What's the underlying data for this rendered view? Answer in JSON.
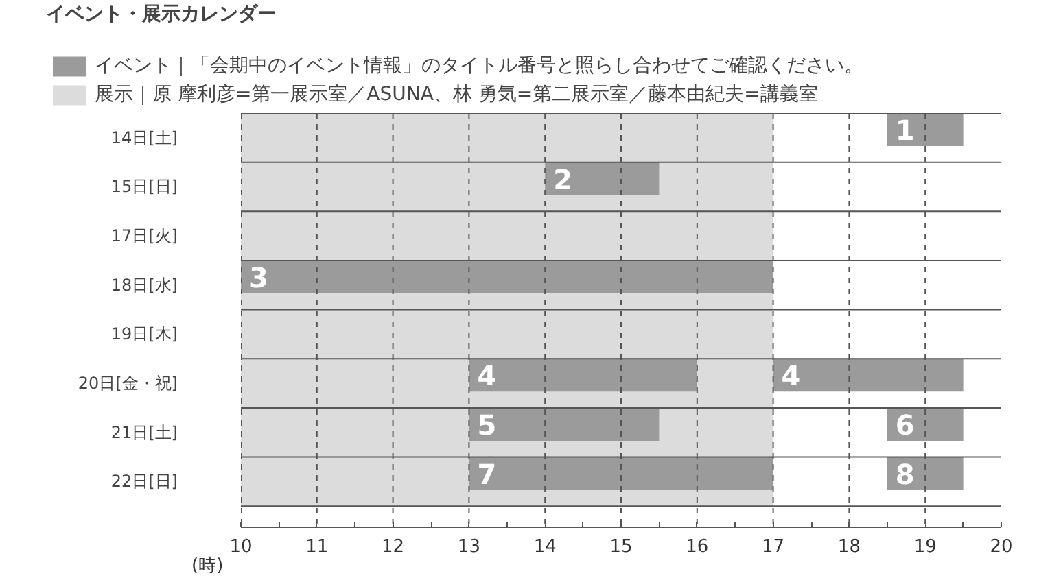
{
  "chart_data": {
    "type": "bar",
    "orientation": "horizontal",
    "title": "イベント・展示カレンダー",
    "xlabel": "(時)",
    "categories": [
      "14日[土]",
      "15日[日]",
      "17日[火]",
      "18日[水]",
      "19日[木]",
      "20日[金・祝]",
      "21日[土]",
      "22日[日]"
    ],
    "xlim": [
      10,
      20
    ],
    "xticks": [
      10,
      {
        "value": 10.5,
        "label": null
      },
      11,
      {
        "value": 11.5,
        "label": null
      },
      12,
      {
        "value": 12.5,
        "label": null
      },
      13,
      {
        "value": 13.5,
        "label": null
      },
      14,
      {
        "value": 14.5,
        "label": null
      },
      15,
      {
        "value": 15.5,
        "label": null
      },
      16,
      {
        "value": 16.5,
        "label": null
      },
      17,
      {
        "value": 17.5,
        "label": null
      },
      18,
      {
        "value": 18.5,
        "label": null
      },
      19,
      {
        "value": 19.5,
        "label": null
      },
      20
    ],
    "grid": "x",
    "legend": "top left",
    "bands": [
      {
        "axis": "x",
        "from": 10,
        "to": 17,
        "label": "展示｜原 摩利彦=第一展示室／ASUNA、林 勇気=第二展示室／藤本由紀夫=講義室",
        "color": "#dcdcdc"
      }
    ],
    "series": [
      {
        "name": "イベント｜「会期中のイベント情報」のタイトル番号と照らし合わせてご確認ください。",
        "color": "#9b9b9b",
        "base": [
          18.5,
          14,
          null,
          10,
          null,
          13,
          13,
          13
        ],
        "values": [
          1,
          1.5,
          null,
          7,
          null,
          3,
          2.5,
          4
        ]
      },
      {
        "color": "#9b9b9b",
        "base": [
          null,
          null,
          null,
          null,
          null,
          17,
          18.5,
          18.5
        ],
        "values": [
          null,
          null,
          null,
          null,
          null,
          2.5,
          1,
          1
        ]
      }
    ],
    "annotations": [
      {
        "text": "1",
        "x": 18.5,
        "y": "14日[土]"
      },
      {
        "text": "2",
        "x": 14,
        "y": "15日[日]"
      },
      {
        "text": "3",
        "x": 10,
        "y": "18日[水]"
      },
      {
        "text": "4",
        "x": 13,
        "y": "20日[金・祝]"
      },
      {
        "text": "4",
        "x": 17,
        "y": "20日[金・祝]"
      },
      {
        "text": "5",
        "x": 13,
        "y": "21日[土]"
      },
      {
        "text": "6",
        "x": 18.5,
        "y": "21日[土]"
      },
      {
        "text": "7",
        "x": 13,
        "y": "22日[日]"
      },
      {
        "text": "8",
        "x": 18.5,
        "y": "22日[日]"
      }
    ]
  }
}
